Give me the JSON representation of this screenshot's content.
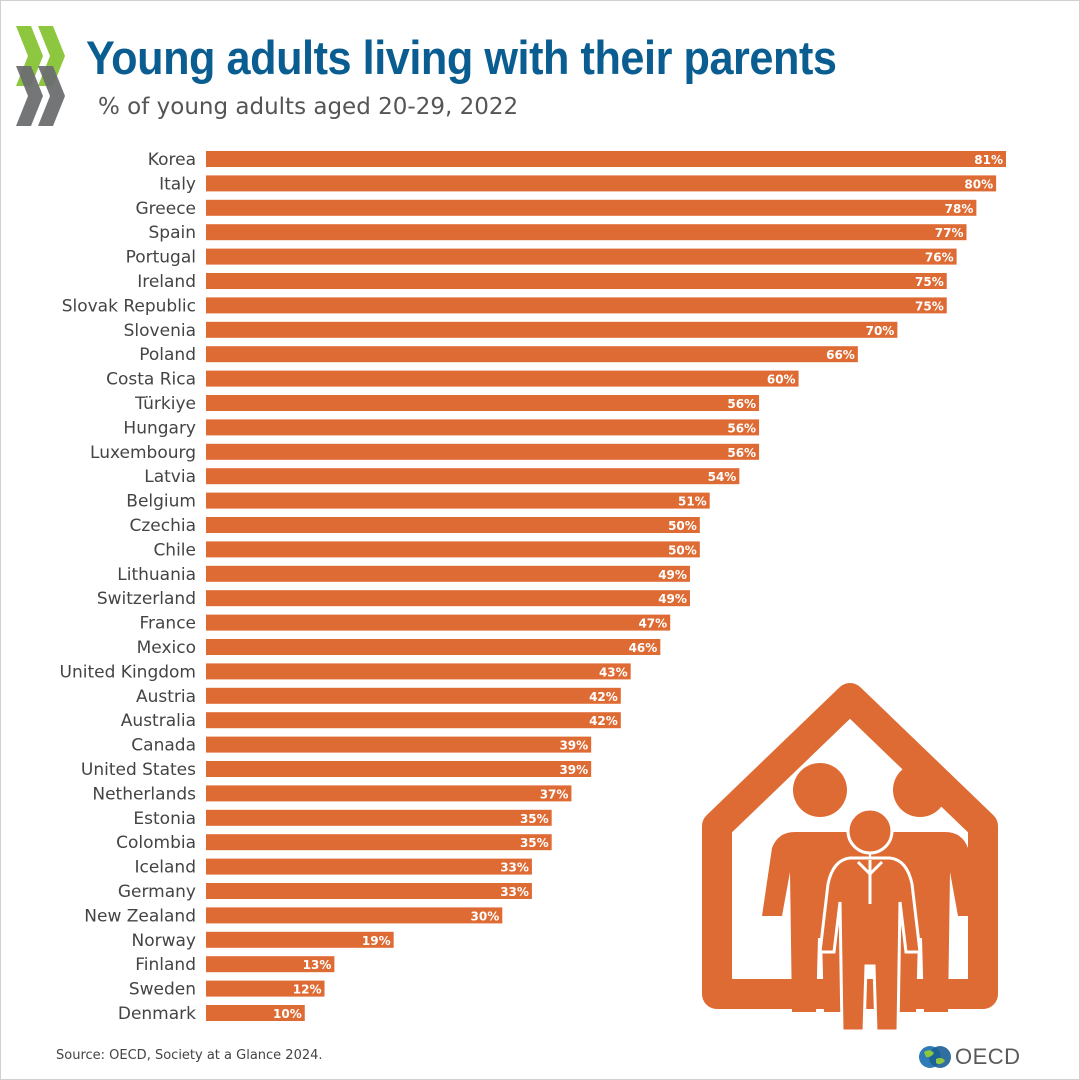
{
  "header": {
    "title": "Young adults living with their parents",
    "subtitle": "% of young adults aged 20-29, 2022"
  },
  "footer": {
    "source": "Source: OECD, Society at a Glance 2024.",
    "logo_text": "OECD"
  },
  "colors": {
    "bar": "#df6b34",
    "title": "#0a5d91",
    "logo_green": "#8dc63f",
    "logo_grey": "#6d6e70"
  },
  "icons": {
    "logo": "oecd-chevrons-icon",
    "illustration": "house-family-icon",
    "globe": "globe-icon"
  },
  "chart_data": {
    "type": "bar",
    "orientation": "horizontal",
    "title": "Young adults living with their parents",
    "subtitle": "% of young adults aged 20-29, 2022",
    "unit": "%",
    "xlim": [
      0,
      81
    ],
    "grid": false,
    "legend": "none",
    "categories": [
      "Korea",
      "Italy",
      "Greece",
      "Spain",
      "Portugal",
      "Ireland",
      "Slovak Republic",
      "Slovenia",
      "Poland",
      "Costa Rica",
      "Türkiye",
      "Hungary",
      "Luxembourg",
      "Latvia",
      "Belgium",
      "Czechia",
      "Chile",
      "Lithuania",
      "Switzerland",
      "France",
      "Mexico",
      "United Kingdom",
      "Austria",
      "Australia",
      "Canada",
      "United States",
      "Netherlands",
      "Estonia",
      "Colombia",
      "Iceland",
      "Germany",
      "New Zealand",
      "Norway",
      "Finland",
      "Sweden",
      "Denmark"
    ],
    "values": [
      81,
      80,
      78,
      77,
      76,
      75,
      75,
      70,
      66,
      60,
      56,
      56,
      56,
      54,
      51,
      50,
      50,
      49,
      49,
      47,
      46,
      43,
      42,
      42,
      39,
      39,
      37,
      35,
      35,
      33,
      33,
      30,
      19,
      13,
      12,
      10
    ],
    "data_labels": [
      "81%",
      "80%",
      "78%",
      "77%",
      "76%",
      "75%",
      "75%",
      "70%",
      "66%",
      "60%",
      "56%",
      "56%",
      "56%",
      "54%",
      "51%",
      "50%",
      "50%",
      "49%",
      "49%",
      "47%",
      "46%",
      "43%",
      "42%",
      "42%",
      "39%",
      "39%",
      "37%",
      "35%",
      "35%",
      "33%",
      "33%",
      "30%",
      "19%",
      "13%",
      "12%",
      "10%"
    ]
  }
}
